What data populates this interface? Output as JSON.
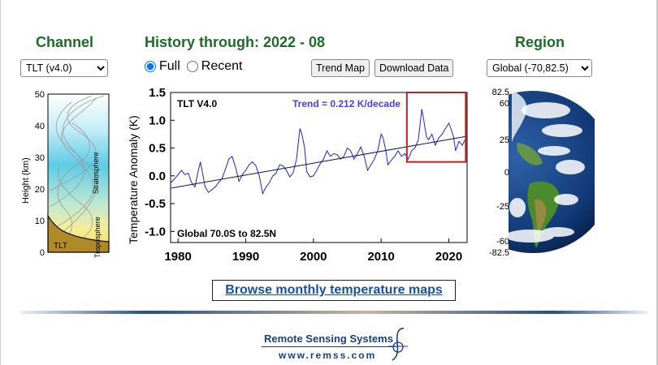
{
  "channel": {
    "heading": "Channel",
    "select_value": "TLT (v4.0)",
    "diagram": {
      "y_label": "Height  (km)",
      "ticks": [
        "50",
        "40",
        "30",
        "20",
        "10",
        "0"
      ],
      "tlt_label": "TLT",
      "troposphere_label": "Troposphere",
      "stratosphere_label": "Stratosphere"
    }
  },
  "history": {
    "heading": "History through: 2022 - 08",
    "radio_full": "Full",
    "radio_recent": "Recent",
    "selected": "Full",
    "trend_map_label": "Trend Map",
    "download_label": "Download Data"
  },
  "region": {
    "heading": "Region",
    "select_value": "Global (-70,82.5)",
    "lat_labels": [
      "82.5",
      "60",
      "25",
      "0",
      "-25",
      "-60",
      "-82.5"
    ]
  },
  "chart_data": {
    "type": "line",
    "title": "TLT V4.0",
    "trend_label": "Trend =  0.212 K/decade",
    "trend_value": 0.212,
    "trend_units": "K/decade",
    "region_label": "Global  70.0S to  82.5N",
    "ylabel": "Temperature Anomaly (K)",
    "xlabel": "",
    "ylim": [
      -1.2,
      1.5
    ],
    "xlim": [
      1978.9,
      2022.7
    ],
    "y_ticks": [
      "1.5",
      "1.0",
      "0.5",
      "0.0",
      "-0.5",
      "-1.0"
    ],
    "x_ticks": [
      "1980",
      "1990",
      "2000",
      "2010",
      "2020"
    ],
    "line_color": "#2222cc",
    "trend_color": "#111144",
    "highlight_color": "#bb2222",
    "highlight_range": {
      "x": [
        2013.8,
        2022.5
      ],
      "y": [
        0.25,
        1.5
      ]
    },
    "series": [
      {
        "values": [
          [
            1979.0,
            -0.12
          ],
          [
            1979.5,
            -0.05
          ],
          [
            1980.0,
            0.02
          ],
          [
            1980.5,
            0.1
          ],
          [
            1981.0,
            0.02
          ],
          [
            1981.5,
            0.05
          ],
          [
            1982.0,
            -0.12
          ],
          [
            1982.5,
            -0.2
          ],
          [
            1983.0,
            0.1
          ],
          [
            1983.3,
            0.25
          ],
          [
            1983.7,
            0.0
          ],
          [
            1984.0,
            -0.2
          ],
          [
            1984.5,
            -0.3
          ],
          [
            1985.0,
            -0.25
          ],
          [
            1985.5,
            -0.2
          ],
          [
            1986.0,
            -0.12
          ],
          [
            1986.5,
            -0.05
          ],
          [
            1987.0,
            0.12
          ],
          [
            1987.5,
            0.3
          ],
          [
            1988.0,
            0.35
          ],
          [
            1988.5,
            0.15
          ],
          [
            1989.0,
            -0.1
          ],
          [
            1989.5,
            0.02
          ],
          [
            1990.0,
            0.1
          ],
          [
            1990.5,
            0.2
          ],
          [
            1991.0,
            0.25
          ],
          [
            1991.5,
            0.18
          ],
          [
            1992.0,
            0.0
          ],
          [
            1992.5,
            -0.32
          ],
          [
            1993.0,
            -0.2
          ],
          [
            1993.5,
            -0.12
          ],
          [
            1994.0,
            0.0
          ],
          [
            1994.5,
            0.05
          ],
          [
            1995.0,
            0.2
          ],
          [
            1995.5,
            0.18
          ],
          [
            1996.0,
            0.1
          ],
          [
            1996.5,
            -0.02
          ],
          [
            1997.0,
            0.05
          ],
          [
            1997.5,
            0.3
          ],
          [
            1998.0,
            0.85
          ],
          [
            1998.3,
            0.75
          ],
          [
            1998.7,
            0.5
          ],
          [
            1999.0,
            0.08
          ],
          [
            1999.5,
            -0.02
          ],
          [
            2000.0,
            0.0
          ],
          [
            2000.5,
            0.1
          ],
          [
            2001.0,
            0.22
          ],
          [
            2001.5,
            0.3
          ],
          [
            2002.0,
            0.45
          ],
          [
            2002.5,
            0.35
          ],
          [
            2003.0,
            0.4
          ],
          [
            2003.5,
            0.38
          ],
          [
            2004.0,
            0.3
          ],
          [
            2004.5,
            0.35
          ],
          [
            2005.0,
            0.5
          ],
          [
            2005.5,
            0.45
          ],
          [
            2006.0,
            0.3
          ],
          [
            2006.5,
            0.4
          ],
          [
            2007.0,
            0.52
          ],
          [
            2007.5,
            0.35
          ],
          [
            2008.0,
            0.1
          ],
          [
            2008.5,
            0.2
          ],
          [
            2009.0,
            0.3
          ],
          [
            2009.5,
            0.45
          ],
          [
            2010.0,
            0.75
          ],
          [
            2010.3,
            0.68
          ],
          [
            2010.7,
            0.45
          ],
          [
            2011.0,
            0.2
          ],
          [
            2011.5,
            0.28
          ],
          [
            2012.0,
            0.35
          ],
          [
            2012.5,
            0.45
          ],
          [
            2013.0,
            0.35
          ],
          [
            2013.5,
            0.4
          ],
          [
            2014.0,
            0.3
          ],
          [
            2014.5,
            0.45
          ],
          [
            2015.0,
            0.5
          ],
          [
            2015.5,
            0.65
          ],
          [
            2016.0,
            1.2
          ],
          [
            2016.3,
            1.0
          ],
          [
            2016.7,
            0.7
          ],
          [
            2017.0,
            0.65
          ],
          [
            2017.5,
            0.75
          ],
          [
            2018.0,
            0.55
          ],
          [
            2018.5,
            0.68
          ],
          [
            2019.0,
            0.75
          ],
          [
            2019.5,
            0.85
          ],
          [
            2020.0,
            0.95
          ],
          [
            2020.3,
            0.85
          ],
          [
            2020.7,
            0.7
          ],
          [
            2021.0,
            0.45
          ],
          [
            2021.5,
            0.62
          ],
          [
            2022.0,
            0.55
          ],
          [
            2022.6,
            0.7
          ]
        ]
      }
    ],
    "trend_line": {
      "x": [
        1979.0,
        2022.6
      ],
      "y": [
        -0.22,
        0.71
      ]
    }
  },
  "browse_link": "Browse monthly temperature maps",
  "footer": {
    "company": "Remote Sensing Systems",
    "url": "www.remss.com"
  }
}
